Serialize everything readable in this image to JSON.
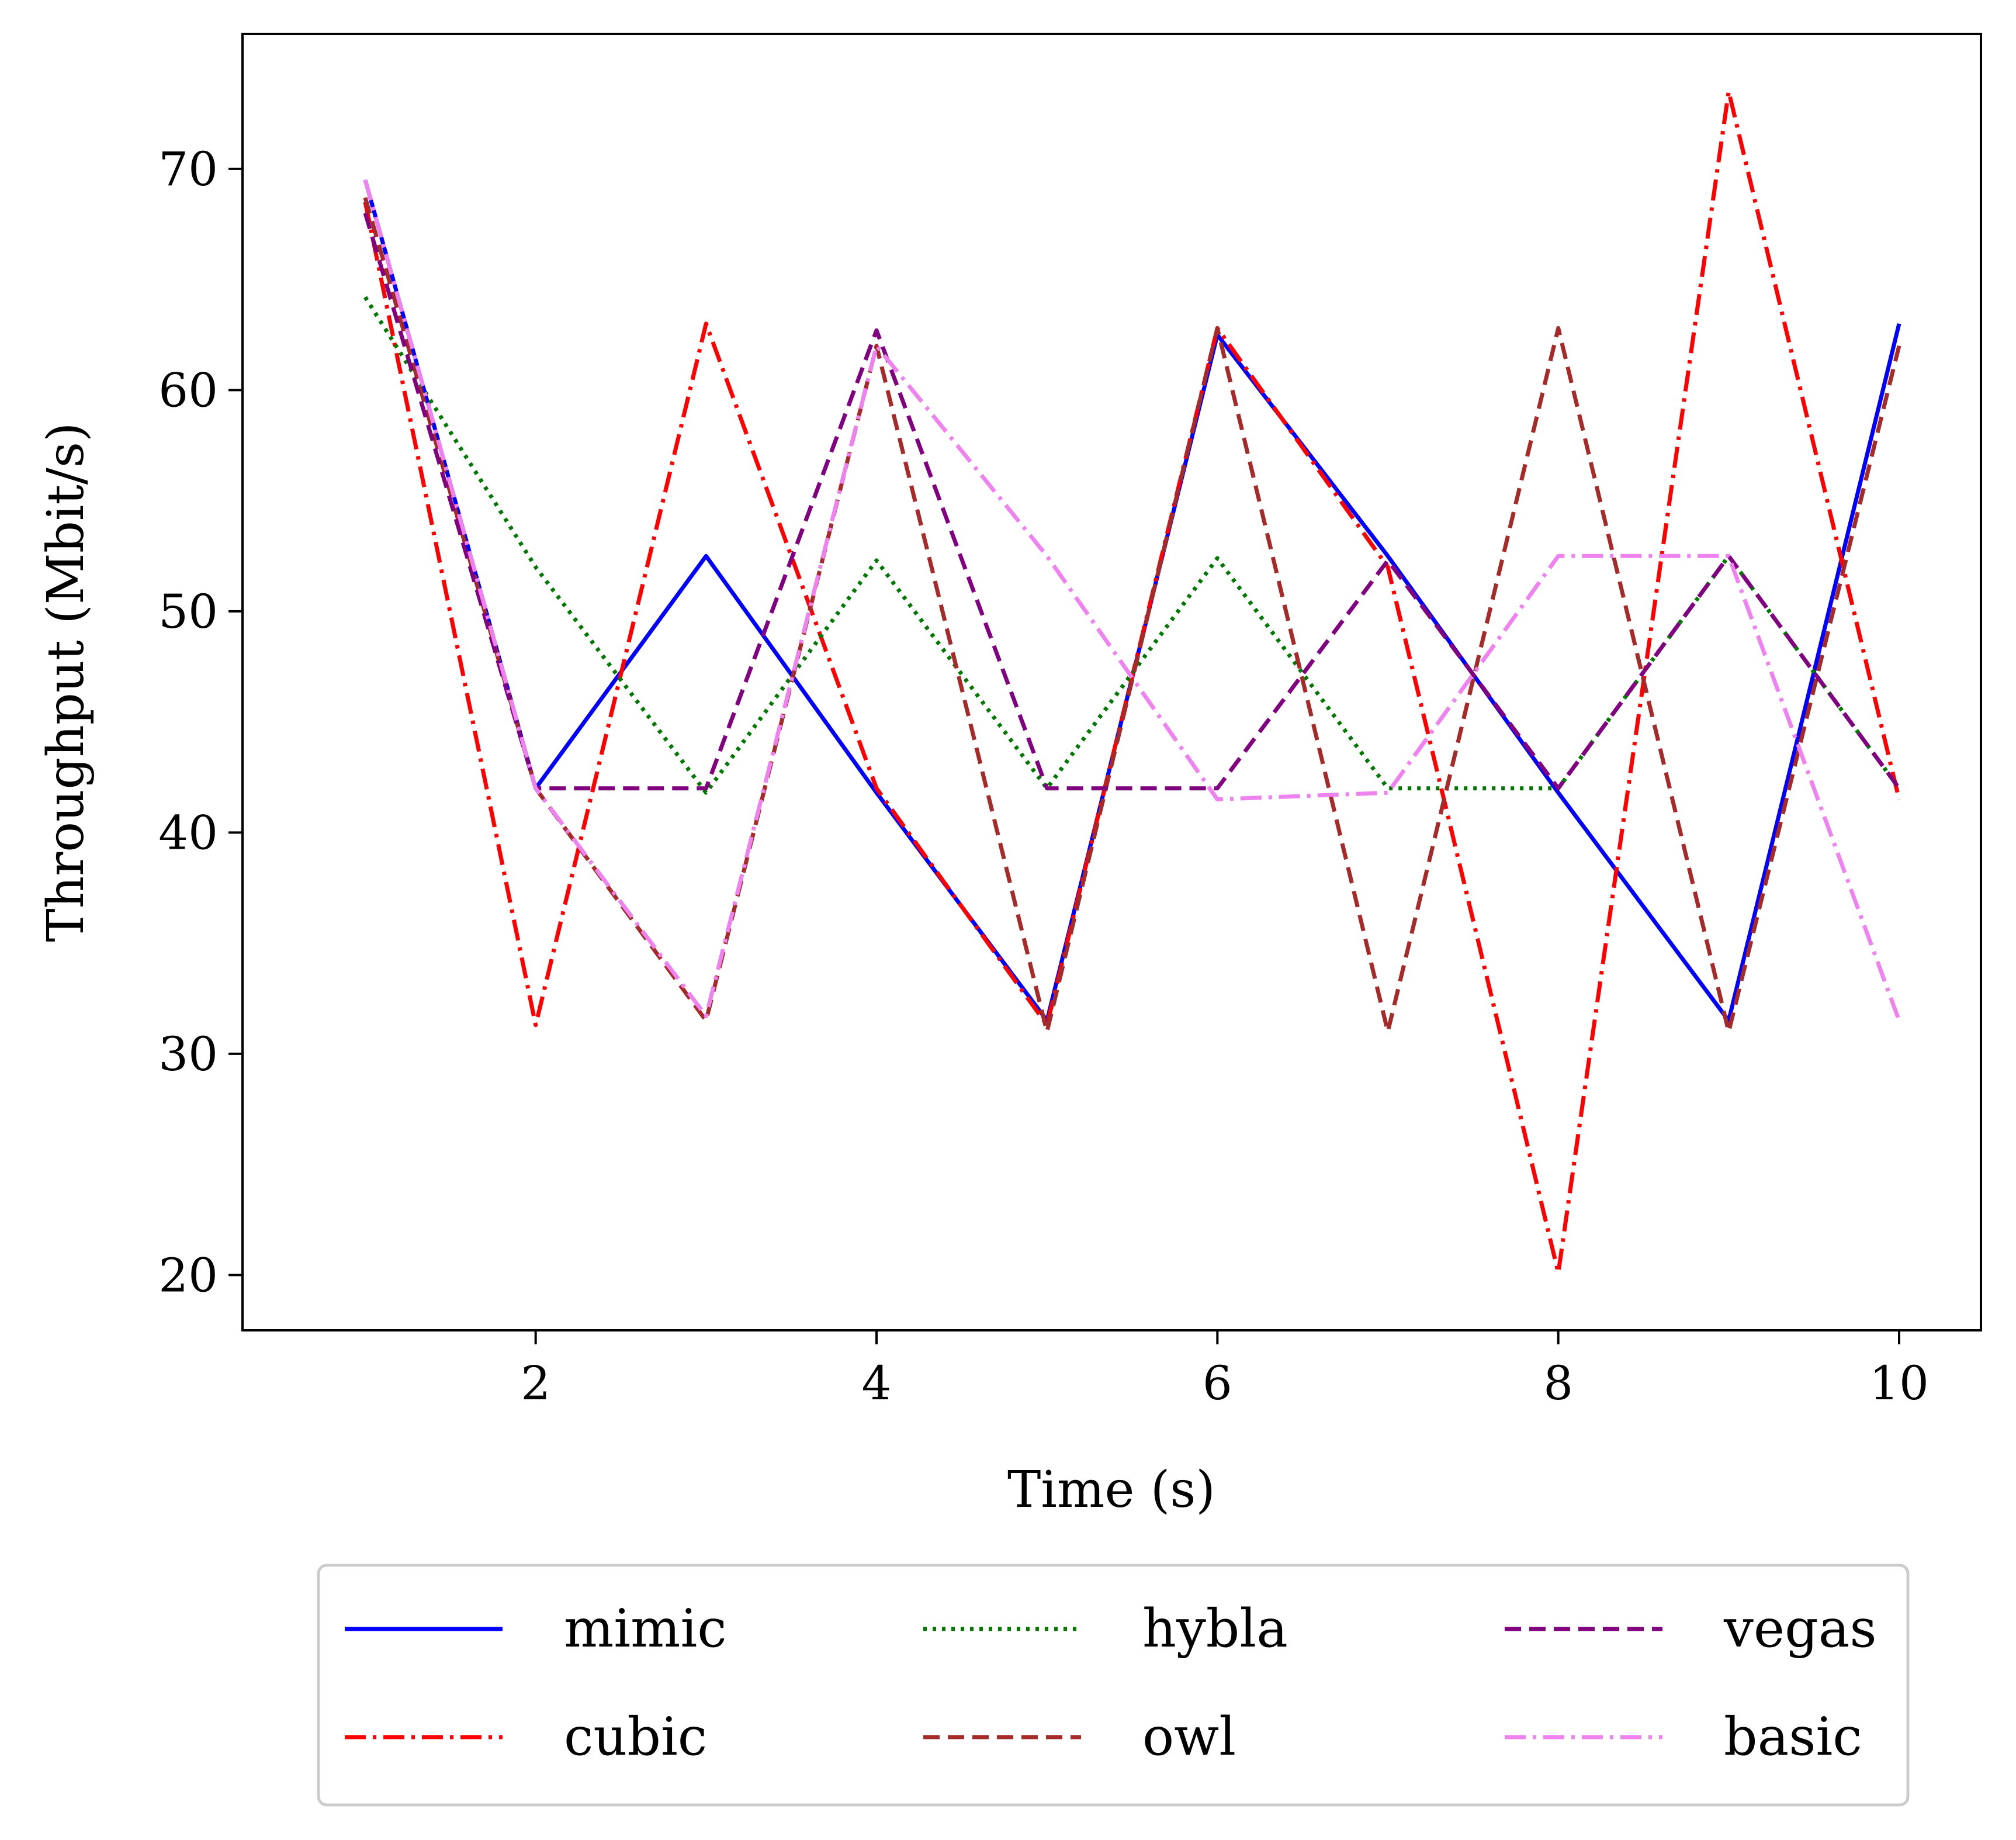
{
  "chart_data": {
    "type": "line",
    "title": "",
    "xlabel": "Time (s)",
    "ylabel": "Throughput (Mbit/s)",
    "xlim": [
      0.28,
      10.48
    ],
    "ylim": [
      17.5,
      76.1
    ],
    "xticks": [
      2,
      4,
      6,
      8,
      10
    ],
    "yticks": [
      20,
      30,
      40,
      50,
      60,
      70
    ],
    "grid": false,
    "legend_placement": "below",
    "x": [
      1,
      2,
      3,
      4,
      5,
      6,
      7,
      8,
      9,
      10
    ],
    "series": [
      {
        "name": "mimic",
        "color": "#0000ff",
        "style": "solid",
        "values": [
          69.5,
          42.0,
          52.5,
          41.8,
          31.5,
          62.5,
          52.5,
          41.8,
          31.5,
          63.0
        ]
      },
      {
        "name": "cubic",
        "color": "#ff0000",
        "style": "dashdot",
        "values": [
          68.5,
          31.3,
          63.0,
          42.0,
          31.3,
          62.8,
          52.0,
          20.1,
          73.5,
          41.5
        ]
      },
      {
        "name": "hybla",
        "color": "#007700",
        "style": "dotted",
        "values": [
          64.2,
          52.0,
          41.8,
          52.3,
          42.0,
          52.4,
          42.0,
          42.0,
          52.5,
          42.0
        ]
      },
      {
        "name": "owl",
        "color": "#a52a2a",
        "style": "dashed",
        "values": [
          68.7,
          42.0,
          31.5,
          62.0,
          31.0,
          62.8,
          31.0,
          62.8,
          31.0,
          62.0
        ]
      },
      {
        "name": "vegas",
        "color": "#800080",
        "style": "dashed",
        "values": [
          68.0,
          42.0,
          42.0,
          62.7,
          42.0,
          42.0,
          52.3,
          42.0,
          52.5,
          42.0
        ]
      },
      {
        "name": "basic",
        "color": "#ee82ee",
        "style": "dashdot",
        "values": [
          69.5,
          42.0,
          31.7,
          62.0,
          52.5,
          41.5,
          41.8,
          52.5,
          52.5,
          31.5
        ]
      }
    ]
  }
}
